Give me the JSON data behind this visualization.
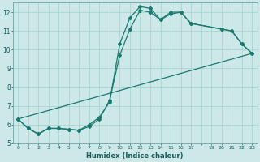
{
  "xlabel": "Humidex (Indice chaleur)",
  "bg_color": "#cce8e8",
  "grid_color": "#aad4d0",
  "line_color": "#1a7a6e",
  "xlim": [
    -0.5,
    23.5
  ],
  "ylim": [
    5,
    12.5
  ],
  "yticks": [
    5,
    6,
    7,
    8,
    9,
    10,
    11,
    12
  ],
  "line1_x": [
    0,
    1,
    2,
    3,
    4,
    5,
    6,
    7,
    8,
    9,
    10,
    11,
    12,
    13,
    14,
    15,
    16,
    17,
    20,
    21,
    22,
    23
  ],
  "line1_y": [
    6.3,
    5.8,
    5.5,
    5.8,
    5.8,
    5.75,
    5.7,
    6.0,
    6.4,
    7.2,
    10.3,
    11.7,
    12.3,
    12.2,
    11.6,
    12.0,
    12.0,
    11.4,
    11.1,
    11.0,
    10.3,
    9.8
  ],
  "line2_x": [
    0,
    1,
    2,
    3,
    4,
    5,
    6,
    7,
    8,
    9,
    10,
    11,
    12,
    13,
    14,
    15,
    16,
    17,
    20,
    21,
    22,
    23
  ],
  "line2_y": [
    6.3,
    5.8,
    5.5,
    5.8,
    5.8,
    5.75,
    5.7,
    5.9,
    6.3,
    7.3,
    9.7,
    11.1,
    12.1,
    12.0,
    11.6,
    11.9,
    12.0,
    11.4,
    11.1,
    11.0,
    10.3,
    9.8
  ],
  "line3_x": [
    0,
    23
  ],
  "line3_y": [
    6.3,
    9.8
  ]
}
